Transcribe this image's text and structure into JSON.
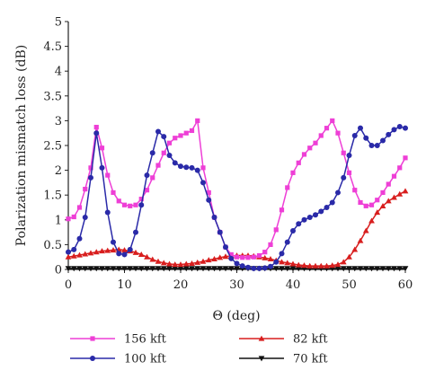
{
  "chart_data": {
    "type": "line",
    "xlabel": "Θ (deg)",
    "ylabel": "Polarization mismatch loss (dB)",
    "xlim": [
      0,
      60
    ],
    "ylim": [
      0,
      5
    ],
    "x_ticks": [
      "0",
      "10",
      "20",
      "30",
      "40",
      "50",
      "60"
    ],
    "y_ticks": [
      "0",
      "0.5",
      "1",
      "1.5",
      "2",
      "2.5",
      "3",
      "3.5",
      "4",
      "4.5",
      "5"
    ],
    "grid": false,
    "legend_position": "bottom",
    "series": [
      {
        "name": "156 kft",
        "color": "#ee3fd6",
        "marker": "square",
        "x": [
          0,
          1,
          2,
          3,
          4,
          5,
          6,
          7,
          8,
          9,
          10,
          11,
          12,
          13,
          14,
          15,
          16,
          17,
          18,
          19,
          20,
          21,
          22,
          23,
          24,
          25,
          26,
          27,
          28,
          29,
          30,
          31,
          32,
          33,
          34,
          35,
          36,
          37,
          38,
          39,
          40,
          41,
          42,
          43,
          44,
          45,
          46,
          47,
          48,
          49,
          50,
          51,
          52,
          53,
          54,
          55,
          56,
          57,
          58,
          59,
          60
        ],
        "y": [
          1.02,
          1.06,
          1.25,
          1.62,
          2.05,
          2.87,
          2.45,
          1.9,
          1.55,
          1.38,
          1.3,
          1.28,
          1.3,
          1.42,
          1.6,
          1.85,
          2.1,
          2.35,
          2.55,
          2.65,
          2.7,
          2.75,
          2.8,
          3.0,
          2.05,
          1.55,
          1.05,
          0.75,
          0.45,
          0.3,
          0.25,
          0.24,
          0.24,
          0.25,
          0.28,
          0.35,
          0.5,
          0.8,
          1.2,
          1.65,
          1.95,
          2.15,
          2.32,
          2.45,
          2.55,
          2.7,
          2.85,
          3.0,
          2.75,
          2.35,
          1.95,
          1.6,
          1.35,
          1.28,
          1.3,
          1.4,
          1.55,
          1.72,
          1.88,
          2.05,
          2.25
        ]
      },
      {
        "name": "100 kft",
        "color": "#2a2aa8",
        "marker": "circle",
        "x": [
          0,
          1,
          2,
          3,
          4,
          5,
          6,
          7,
          8,
          9,
          10,
          11,
          12,
          13,
          14,
          15,
          16,
          17,
          18,
          19,
          20,
          21,
          22,
          23,
          24,
          25,
          26,
          27,
          28,
          29,
          30,
          31,
          32,
          33,
          34,
          35,
          36,
          37,
          38,
          39,
          40,
          41,
          42,
          43,
          44,
          45,
          46,
          47,
          48,
          49,
          50,
          51,
          52,
          53,
          54,
          55,
          56,
          57,
          58,
          59,
          60
        ],
        "y": [
          0.35,
          0.4,
          0.62,
          1.05,
          1.85,
          2.75,
          2.05,
          1.15,
          0.55,
          0.32,
          0.3,
          0.4,
          0.75,
          1.3,
          1.9,
          2.35,
          2.78,
          2.68,
          2.3,
          2.15,
          2.08,
          2.06,
          2.05,
          2.0,
          1.75,
          1.4,
          1.05,
          0.75,
          0.45,
          0.22,
          0.12,
          0.07,
          0.04,
          0.02,
          0.02,
          0.03,
          0.06,
          0.15,
          0.32,
          0.55,
          0.78,
          0.92,
          1.0,
          1.05,
          1.1,
          1.17,
          1.25,
          1.35,
          1.55,
          1.85,
          2.3,
          2.7,
          2.85,
          2.65,
          2.5,
          2.5,
          2.6,
          2.72,
          2.82,
          2.88,
          2.85
        ]
      },
      {
        "name": "82 kft",
        "color": "#d81e1e",
        "marker": "triangle-up",
        "x": [
          0,
          1,
          2,
          3,
          4,
          5,
          6,
          7,
          8,
          9,
          10,
          11,
          12,
          13,
          14,
          15,
          16,
          17,
          18,
          19,
          20,
          21,
          22,
          23,
          24,
          25,
          26,
          27,
          28,
          29,
          30,
          31,
          32,
          33,
          34,
          35,
          36,
          37,
          38,
          39,
          40,
          41,
          42,
          43,
          44,
          45,
          46,
          47,
          48,
          49,
          50,
          51,
          52,
          53,
          54,
          55,
          56,
          57,
          58,
          59,
          60
        ],
        "y": [
          0.25,
          0.27,
          0.29,
          0.31,
          0.33,
          0.35,
          0.37,
          0.38,
          0.39,
          0.4,
          0.39,
          0.37,
          0.34,
          0.3,
          0.25,
          0.2,
          0.16,
          0.13,
          0.11,
          0.1,
          0.1,
          0.11,
          0.12,
          0.14,
          0.16,
          0.19,
          0.21,
          0.24,
          0.26,
          0.27,
          0.28,
          0.28,
          0.28,
          0.27,
          0.25,
          0.23,
          0.21,
          0.18,
          0.15,
          0.13,
          0.11,
          0.09,
          0.08,
          0.07,
          0.07,
          0.07,
          0.07,
          0.08,
          0.1,
          0.15,
          0.25,
          0.4,
          0.58,
          0.78,
          0.98,
          1.15,
          1.28,
          1.38,
          1.45,
          1.52,
          1.58
        ]
      },
      {
        "name": "70 kft",
        "color": "#111111",
        "marker": "triangle-down",
        "x": [
          0,
          1,
          2,
          3,
          4,
          5,
          6,
          7,
          8,
          9,
          10,
          11,
          12,
          13,
          14,
          15,
          16,
          17,
          18,
          19,
          20,
          21,
          22,
          23,
          24,
          25,
          26,
          27,
          28,
          29,
          30,
          31,
          32,
          33,
          34,
          35,
          36,
          37,
          38,
          39,
          40,
          41,
          42,
          43,
          44,
          45,
          46,
          47,
          48,
          49,
          50,
          51,
          52,
          53,
          54,
          55,
          56,
          57,
          58,
          59,
          60
        ],
        "y": [
          0.02,
          0.02,
          0.02,
          0.02,
          0.02,
          0.02,
          0.02,
          0.02,
          0.02,
          0.02,
          0.02,
          0.02,
          0.02,
          0.02,
          0.02,
          0.02,
          0.02,
          0.02,
          0.02,
          0.02,
          0.02,
          0.02,
          0.02,
          0.02,
          0.02,
          0.02,
          0.02,
          0.02,
          0.02,
          0.02,
          0.02,
          0.02,
          0.02,
          0.02,
          0.02,
          0.02,
          0.02,
          0.02,
          0.02,
          0.02,
          0.02,
          0.02,
          0.02,
          0.02,
          0.02,
          0.02,
          0.02,
          0.02,
          0.02,
          0.02,
          0.02,
          0.02,
          0.02,
          0.02,
          0.02,
          0.02,
          0.02,
          0.02,
          0.02,
          0.02,
          0.02
        ]
      }
    ]
  }
}
